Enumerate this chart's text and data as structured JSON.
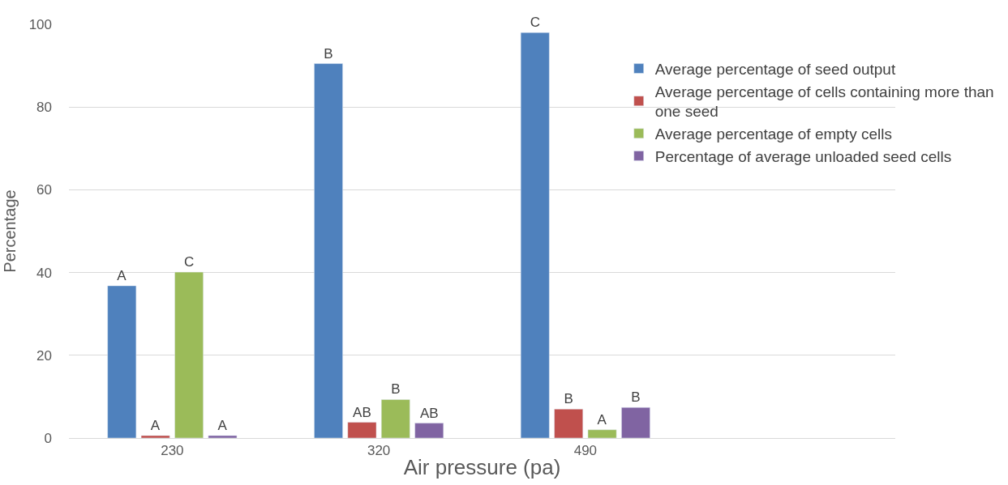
{
  "chart_data": {
    "type": "bar",
    "xlabel": "Air pressure (pa)",
    "ylabel": "Percentage",
    "categories": [
      "230",
      "320",
      "490",
      null
    ],
    "series": [
      {
        "name": "Average percentage of seed output",
        "color": "#4f81bd",
        "values": [
          36.8,
          90.5,
          98.0,
          null
        ],
        "value_labels": [
          "A",
          "B",
          "C",
          null
        ]
      },
      {
        "name": "Average percentage of cells containing more than one seed",
        "color": "#c0504d",
        "values": [
          0.6,
          3.8,
          7.0,
          null
        ],
        "value_labels": [
          "A",
          "AB",
          "B",
          null
        ]
      },
      {
        "name": "Average percentage of empty cells",
        "color": "#9bbb59",
        "values": [
          40.1,
          9.3,
          2.0,
          null
        ],
        "value_labels": [
          "C",
          "B",
          "A",
          null
        ]
      },
      {
        "name": "Percentage of average unloaded seed cells",
        "color": "#8064a2",
        "values": [
          0.6,
          3.6,
          7.4,
          null
        ],
        "value_labels": [
          "A",
          "AB",
          "B",
          null
        ]
      }
    ],
    "ylim": [
      0,
      100
    ],
    "yticks": [
      0,
      20,
      40,
      60,
      80,
      100
    ],
    "grid": "y",
    "legend": "right"
  }
}
